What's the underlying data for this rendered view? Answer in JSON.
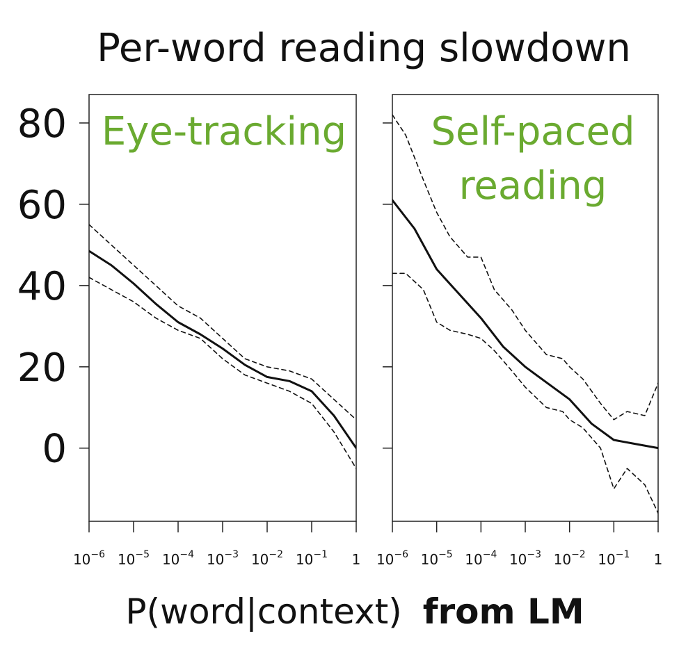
{
  "title": "Per-word reading slowdown",
  "xlabel": {
    "plain": "P(word|context)",
    "bold": "from LM"
  },
  "colors": {
    "panel_label": "#6aaa30",
    "line": "#111111"
  },
  "chart_data": [
    {
      "type": "line",
      "panel_label": [
        "Eye-tracking"
      ],
      "x_scale": "log10",
      "xlim": [
        1e-06,
        1
      ],
      "ylim": [
        -18,
        87
      ],
      "x_ticks": [
        {
          "base": "10",
          "exp": "−6",
          "value": 1e-06
        },
        {
          "base": "10",
          "exp": "−5",
          "value": 1e-05
        },
        {
          "base": "10",
          "exp": "−4",
          "value": 0.0001
        },
        {
          "base": "10",
          "exp": "−3",
          "value": 0.001
        },
        {
          "base": "10",
          "exp": "−2",
          "value": 0.01
        },
        {
          "base": "10",
          "exp": "−1",
          "value": 0.1
        },
        {
          "base": "1",
          "exp": "",
          "value": 1
        }
      ],
      "y_ticks": [
        0,
        20,
        40,
        60,
        80
      ],
      "series": [
        {
          "role": "estimate",
          "style": "solid",
          "x": [
            1e-06,
            3.16e-06,
            1e-05,
            3.16e-05,
            0.0001,
            0.000316,
            0.001,
            0.00316,
            0.01,
            0.0316,
            0.1,
            0.316,
            1
          ],
          "y": [
            48.5,
            45,
            40.5,
            35.5,
            31,
            28,
            24.5,
            20.5,
            17.5,
            16.5,
            14,
            8,
            0
          ]
        },
        {
          "role": "upper",
          "style": "dashed",
          "x": [
            1e-06,
            3.16e-06,
            1e-05,
            3.16e-05,
            0.0001,
            0.000316,
            0.001,
            0.00316,
            0.01,
            0.0316,
            0.1,
            0.316,
            1
          ],
          "y": [
            55,
            50,
            45,
            40,
            35,
            32,
            27,
            22,
            20,
            19,
            17,
            12,
            7
          ]
        },
        {
          "role": "lower",
          "style": "dashed",
          "x": [
            1e-06,
            3.16e-06,
            1e-05,
            3.16e-05,
            0.0001,
            0.000316,
            0.001,
            0.00316,
            0.01,
            0.0316,
            0.1,
            0.316,
            1
          ],
          "y": [
            42,
            39,
            36,
            32,
            29,
            27,
            22,
            18,
            16,
            14,
            11,
            4,
            -5
          ]
        }
      ]
    },
    {
      "type": "line",
      "panel_label": [
        "Self-paced",
        "reading"
      ],
      "x_scale": "log10",
      "xlim": [
        1e-06,
        1
      ],
      "ylim": [
        -18,
        87
      ],
      "x_ticks": [
        {
          "base": "10",
          "exp": "−6",
          "value": 1e-06
        },
        {
          "base": "10",
          "exp": "−5",
          "value": 1e-05
        },
        {
          "base": "10",
          "exp": "−4",
          "value": 0.0001
        },
        {
          "base": "10",
          "exp": "−3",
          "value": 0.001
        },
        {
          "base": "10",
          "exp": "−2",
          "value": 0.01
        },
        {
          "base": "10",
          "exp": "−1",
          "value": 0.1
        },
        {
          "base": "1",
          "exp": "",
          "value": 1
        }
      ],
      "y_ticks": [
        0,
        20,
        40,
        60,
        80
      ],
      "series": [
        {
          "role": "estimate",
          "style": "solid",
          "x": [
            1e-06,
            3.16e-06,
            1e-05,
            3.16e-05,
            0.0001,
            0.000316,
            0.001,
            0.00316,
            0.01,
            0.0316,
            0.1,
            0.316,
            1
          ],
          "y": [
            61,
            54,
            44,
            38,
            32,
            25,
            20,
            16,
            12,
            6,
            2,
            1,
            0
          ]
        },
        {
          "role": "upper",
          "style": "dashed",
          "x": [
            1e-06,
            2e-06,
            5e-06,
            1e-05,
            2e-05,
            5e-05,
            0.0001,
            0.0002,
            0.0005,
            0.001,
            0.003,
            0.007,
            0.01,
            0.02,
            0.05,
            0.1,
            0.2,
            0.5,
            1
          ],
          "y": [
            82,
            77,
            66,
            58,
            52,
            47,
            47,
            39,
            34,
            29,
            23,
            22,
            20,
            17,
            11,
            7,
            9,
            8,
            16
          ]
        },
        {
          "role": "lower",
          "style": "dashed",
          "x": [
            1e-06,
            2e-06,
            5e-06,
            1e-05,
            2e-05,
            5e-05,
            0.0001,
            0.0002,
            0.0005,
            0.001,
            0.003,
            0.007,
            0.01,
            0.02,
            0.05,
            0.1,
            0.2,
            0.5,
            1
          ],
          "y": [
            43,
            43,
            39,
            31,
            29,
            28,
            27,
            24,
            19,
            15,
            10,
            9,
            7,
            5,
            0,
            -10,
            -5,
            -9,
            -16
          ]
        }
      ]
    }
  ]
}
